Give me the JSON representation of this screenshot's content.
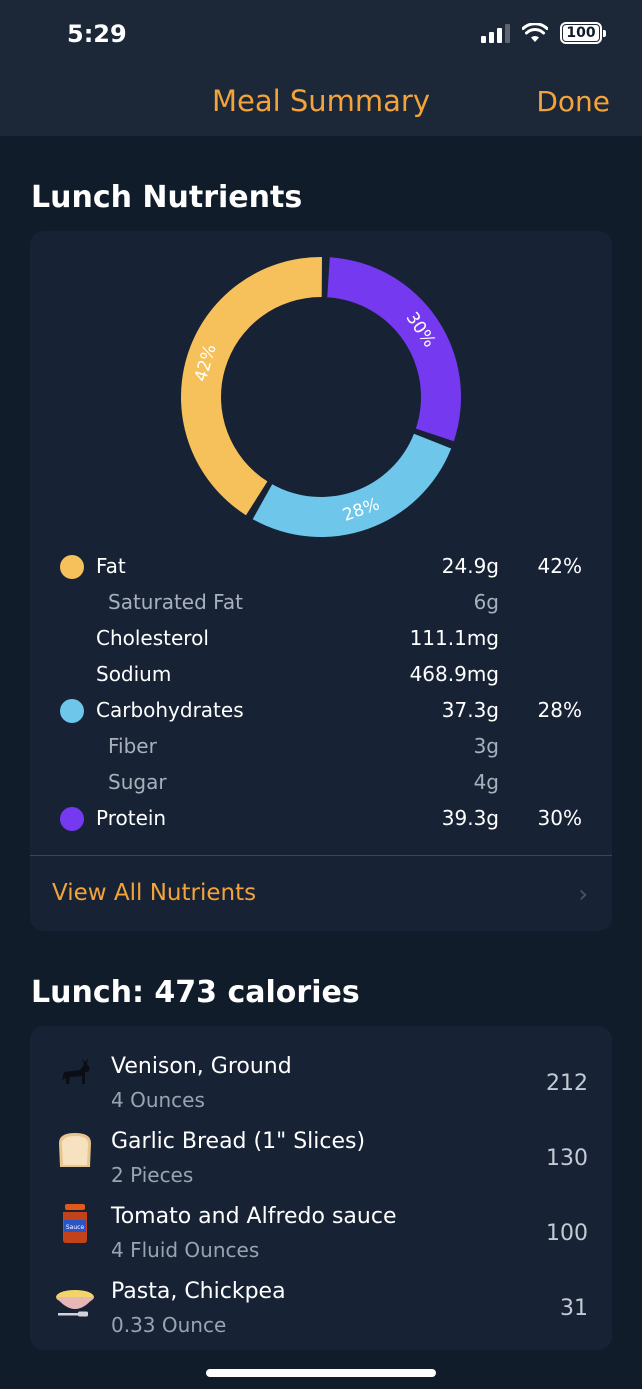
{
  "status_bar": {
    "time": "5:29",
    "battery": "100"
  },
  "nav": {
    "title": "Meal Summary",
    "done_label": "Done"
  },
  "nutrients_section": {
    "title": "Lunch Nutrients"
  },
  "colors": {
    "fat": "#f6c15a",
    "carbs": "#6ec6ea",
    "protein": "#7539f0",
    "accent": "#f3a33a"
  },
  "chart_data": {
    "type": "pie",
    "categories": [
      "Fat",
      "Carbohydrates",
      "Protein"
    ],
    "values": [
      42,
      28,
      30
    ],
    "labels": [
      "42%",
      "28%",
      "30%"
    ]
  },
  "nutrients": [
    {
      "label": "Fat",
      "amount": "24.9g",
      "pct": "42%",
      "dot": "fat"
    },
    {
      "label": "Saturated Fat",
      "amount": "6g",
      "pct": "",
      "sub": true
    },
    {
      "label": "Cholesterol",
      "amount": "111.1mg",
      "pct": ""
    },
    {
      "label": "Sodium",
      "amount": "468.9mg",
      "pct": ""
    },
    {
      "label": "Carbohydrates",
      "amount": "37.3g",
      "pct": "28%",
      "dot": "carbs"
    },
    {
      "label": "Fiber",
      "amount": "3g",
      "pct": "",
      "sub": true
    },
    {
      "label": "Sugar",
      "amount": "4g",
      "pct": "",
      "sub": true
    },
    {
      "label": "Protein",
      "amount": "39.3g",
      "pct": "30%",
      "dot": "protein"
    }
  ],
  "view_all_label": "View All Nutrients",
  "foods_section": {
    "title": "Lunch: 473 calories"
  },
  "foods": [
    {
      "name": "Venison, Ground",
      "qty": "4 Ounces",
      "cal": "212",
      "icon": "deer-icon"
    },
    {
      "name": "Garlic Bread (1\" Slices)",
      "qty": "2 Pieces",
      "cal": "130",
      "icon": "bread-icon"
    },
    {
      "name": "Tomato and Alfredo sauce",
      "qty": "4 Fluid Ounces",
      "cal": "100",
      "icon": "sauce-jar-icon"
    },
    {
      "name": "Pasta, Chickpea",
      "qty": "0.33 Ounce",
      "cal": "31",
      "icon": "pasta-bowl-icon"
    }
  ]
}
